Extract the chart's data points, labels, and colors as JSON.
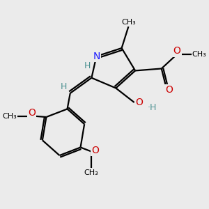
{
  "bg_color": "#ebebeb",
  "atom_color_N": "#1a1aff",
  "atom_color_O": "#cc0000",
  "atom_color_H_teal": "#4a9090",
  "bond_color": "#000000",
  "bond_width": 1.6,
  "figsize": [
    3.0,
    3.0
  ],
  "dpi": 100,
  "xlim": [
    0,
    10
  ],
  "ylim": [
    0,
    10
  ]
}
